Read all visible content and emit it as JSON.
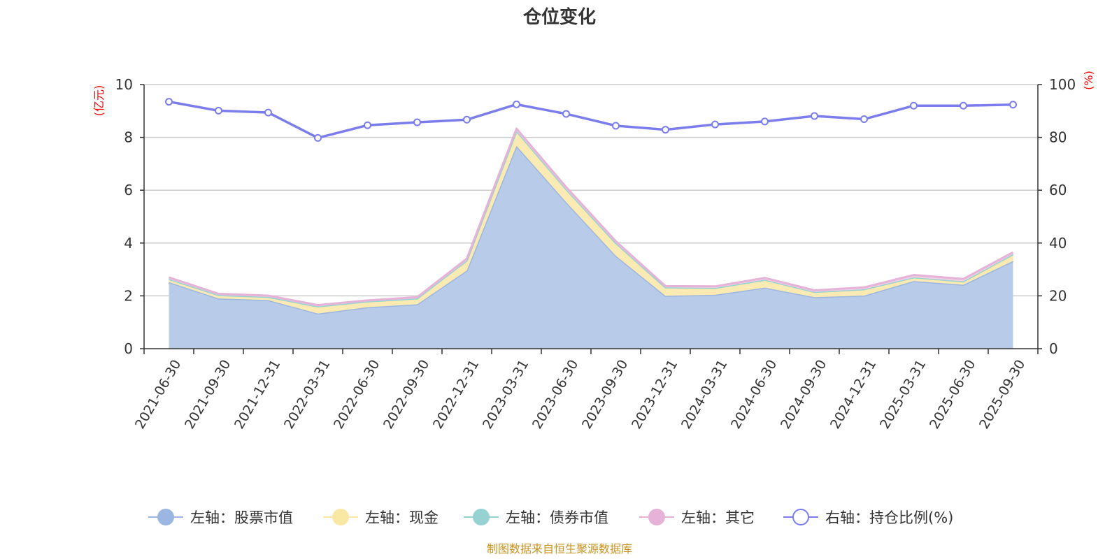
{
  "chart_data": {
    "type": "area",
    "title": "仓位变化",
    "left_axis_unit": "(亿元)",
    "right_axis_unit": "(%)",
    "categories": [
      "2021-06-30",
      "2021-09-30",
      "2021-12-31",
      "2022-03-31",
      "2022-06-30",
      "2022-09-30",
      "2022-12-31",
      "2023-03-31",
      "2023-06-30",
      "2023-09-30",
      "2023-12-31",
      "2024-03-31",
      "2024-06-30",
      "2024-09-30",
      "2024-12-31",
      "2025-03-31",
      "2025-06-30",
      "2025-09-30"
    ],
    "left_ylim": [
      0,
      10
    ],
    "left_yticks": [
      0,
      2,
      4,
      6,
      8,
      10
    ],
    "right_ylim": [
      0,
      100
    ],
    "right_yticks": [
      0,
      20,
      40,
      60,
      80,
      100
    ],
    "grid": true,
    "legend_position": "bottom",
    "stacked_series": [
      {
        "name": "左轴：股票市值",
        "axis": "left",
        "color": "#9bb6e0",
        "fill": "#b8cce9",
        "values": [
          2.52,
          1.9,
          1.84,
          1.33,
          1.57,
          1.68,
          2.96,
          7.68,
          5.55,
          3.52,
          2.0,
          2.04,
          2.31,
          1.95,
          2.01,
          2.56,
          2.42,
          3.32
        ]
      },
      {
        "name": "左轴：现金",
        "axis": "left",
        "color": "#f9e7a4",
        "fill": "#fbeab1",
        "values": [
          0.12,
          0.13,
          0.12,
          0.27,
          0.22,
          0.22,
          0.38,
          0.56,
          0.49,
          0.48,
          0.32,
          0.26,
          0.3,
          0.2,
          0.24,
          0.14,
          0.11,
          0.2
        ]
      },
      {
        "name": "左轴：债券市值",
        "axis": "left",
        "color": "#97d2d2",
        "fill": "#bfe4e4",
        "values": [
          0.0,
          0.0,
          0.0,
          0.0,
          0.0,
          0.0,
          0.0,
          0.0,
          0.0,
          0.0,
          0.0,
          0.0,
          0.0,
          0.0,
          0.0,
          0.0,
          0.02,
          0.06
        ]
      },
      {
        "name": "左轴：其它",
        "axis": "left",
        "color": "#e6b2d7",
        "fill": "#f0d0e5",
        "values": [
          0.06,
          0.05,
          0.05,
          0.05,
          0.04,
          0.05,
          0.07,
          0.09,
          0.08,
          0.07,
          0.05,
          0.06,
          0.07,
          0.06,
          0.07,
          0.09,
          0.09,
          0.07
        ]
      }
    ],
    "line_series": {
      "name": "右轴：持仓比例(%)",
      "axis": "right",
      "color": "#7b7ded",
      "values": [
        93.5,
        90.1,
        89.4,
        79.8,
        84.6,
        85.7,
        86.7,
        92.5,
        88.9,
        84.4,
        82.9,
        84.9,
        86.0,
        88.1,
        86.9,
        92.0,
        92.0,
        92.4
      ]
    },
    "source": "制图数据来自恒生聚源数据库"
  }
}
